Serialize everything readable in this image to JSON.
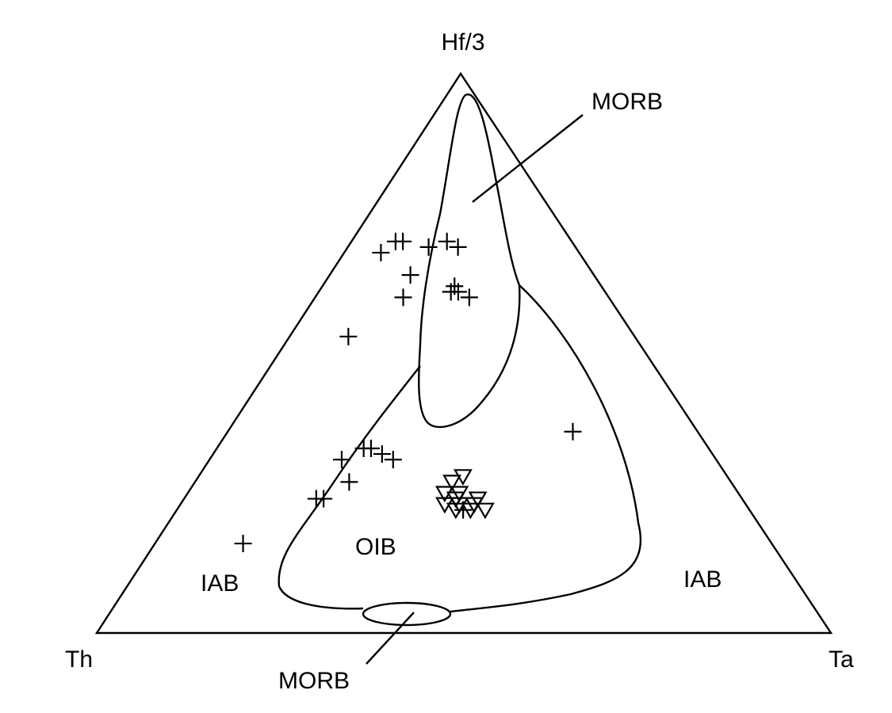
{
  "chart_data": {
    "type": "ternary-scatter",
    "title": "",
    "vertices": {
      "top": "Hf/3",
      "left": "Th",
      "right": "Ta"
    },
    "field_labels": {
      "morb_upper": "MORB",
      "morb_lower": "MORB",
      "oib": "OIB",
      "iab_left": "IAB",
      "iab_right": "IAB"
    },
    "series": [
      {
        "name": "cross",
        "marker": "plus",
        "points": [
          {
            "hf3": 0.68,
            "th": 0.27,
            "ta": 0.05
          },
          {
            "hf3": 0.7,
            "th": 0.23,
            "ta": 0.07
          },
          {
            "hf3": 0.7,
            "th": 0.24,
            "ta": 0.06
          },
          {
            "hf3": 0.69,
            "th": 0.2,
            "ta": 0.11
          },
          {
            "hf3": 0.7,
            "th": 0.17,
            "ta": 0.13
          },
          {
            "hf3": 0.69,
            "th": 0.16,
            "ta": 0.15
          },
          {
            "hf3": 0.64,
            "th": 0.25,
            "ta": 0.11
          },
          {
            "hf3": 0.6,
            "th": 0.28,
            "ta": 0.12
          },
          {
            "hf3": 0.61,
            "th": 0.21,
            "ta": 0.18
          },
          {
            "hf3": 0.62,
            "th": 0.2,
            "ta": 0.18
          },
          {
            "hf3": 0.61,
            "th": 0.2,
            "ta": 0.19
          },
          {
            "hf3": 0.6,
            "th": 0.19,
            "ta": 0.21
          },
          {
            "hf3": 0.53,
            "th": 0.39,
            "ta": 0.08
          },
          {
            "hf3": 0.36,
            "th": 0.17,
            "ta": 0.47
          },
          {
            "hf3": 0.33,
            "th": 0.47,
            "ta": 0.2
          },
          {
            "hf3": 0.33,
            "th": 0.46,
            "ta": 0.21
          },
          {
            "hf3": 0.32,
            "th": 0.45,
            "ta": 0.23
          },
          {
            "hf3": 0.31,
            "th": 0.44,
            "ta": 0.25
          },
          {
            "hf3": 0.31,
            "th": 0.51,
            "ta": 0.18
          },
          {
            "hf3": 0.27,
            "th": 0.52,
            "ta": 0.21
          },
          {
            "hf3": 0.24,
            "th": 0.58,
            "ta": 0.18
          },
          {
            "hf3": 0.24,
            "th": 0.57,
            "ta": 0.19
          },
          {
            "hf3": 0.16,
            "th": 0.72,
            "ta": 0.12
          },
          {
            "hf3": 0.22,
            "th": 0.39,
            "ta": 0.39
          }
        ]
      },
      {
        "name": "triangle",
        "marker": "triangle-down",
        "points": [
          {
            "hf3": 0.27,
            "th": 0.38,
            "ta": 0.35
          },
          {
            "hf3": 0.28,
            "th": 0.36,
            "ta": 0.36
          },
          {
            "hf3": 0.25,
            "th": 0.38,
            "ta": 0.37
          },
          {
            "hf3": 0.25,
            "th": 0.4,
            "ta": 0.35
          },
          {
            "hf3": 0.24,
            "th": 0.39,
            "ta": 0.37
          },
          {
            "hf3": 0.23,
            "th": 0.39,
            "ta": 0.38
          },
          {
            "hf3": 0.22,
            "th": 0.38,
            "ta": 0.4
          },
          {
            "hf3": 0.23,
            "th": 0.41,
            "ta": 0.36
          },
          {
            "hf3": 0.22,
            "th": 0.36,
            "ta": 0.42
          },
          {
            "hf3": 0.23,
            "th": 0.37,
            "ta": 0.4
          },
          {
            "hf3": 0.24,
            "th": 0.36,
            "ta": 0.4
          },
          {
            "hf3": 0.22,
            "th": 0.4,
            "ta": 0.38
          }
        ]
      }
    ],
    "field_boundaries": {
      "morb_upper": [
        {
          "hf3": 0.99,
          "th": 0.0,
          "ta": 0.01
        },
        {
          "hf3": 0.88,
          "th": 0.04,
          "ta": 0.08
        },
        {
          "hf3": 0.68,
          "th": 0.12,
          "ta": 0.2
        },
        {
          "hf3": 0.53,
          "th": 0.16,
          "ta": 0.31
        },
        {
          "hf3": 0.38,
          "th": 0.3,
          "ta": 0.32
        },
        {
          "hf3": 0.43,
          "th": 0.36,
          "ta": 0.21
        },
        {
          "hf3": 0.56,
          "th": 0.31,
          "ta": 0.13
        },
        {
          "hf3": 0.74,
          "th": 0.21,
          "ta": 0.05
        },
        {
          "hf3": 0.99,
          "th": 0.0,
          "ta": 0.01
        }
      ],
      "oib": [
        {
          "hf3": 0.62,
          "th": 0.15,
          "ta": 0.23
        },
        {
          "hf3": 0.45,
          "th": 0.14,
          "ta": 0.41
        },
        {
          "hf3": 0.2,
          "th": 0.22,
          "ta": 0.58
        },
        {
          "hf3": 0.08,
          "th": 0.31,
          "ta": 0.61
        },
        {
          "hf3": 0.04,
          "th": 0.42,
          "ta": 0.54
        },
        {
          "hf3": 0.04,
          "th": 0.54,
          "ta": 0.42
        },
        {
          "hf3": 0.05,
          "th": 0.6,
          "ta": 0.35
        },
        {
          "hf3": 0.13,
          "th": 0.55,
          "ta": 0.32
        },
        {
          "hf3": 0.35,
          "th": 0.4,
          "ta": 0.25
        },
        {
          "hf3": 0.49,
          "th": 0.33,
          "ta": 0.18
        }
      ],
      "morb_lower": [
        {
          "hf3": 0.04,
          "th": 0.53,
          "ta": 0.43
        },
        {
          "hf3": 0.02,
          "th": 0.49,
          "ta": 0.49
        },
        {
          "hf3": 0.01,
          "th": 0.46,
          "ta": 0.53
        },
        {
          "hf3": 0.03,
          "th": 0.44,
          "ta": 0.53
        },
        {
          "hf3": 0.04,
          "th": 0.49,
          "ta": 0.47
        },
        {
          "hf3": 0.04,
          "th": 0.53,
          "ta": 0.43
        }
      ]
    },
    "grid": false
  }
}
